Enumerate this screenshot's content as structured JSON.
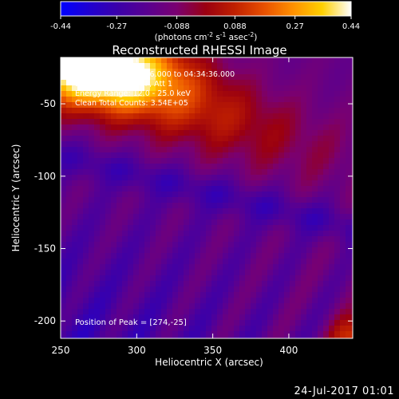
{
  "chart_data": {
    "type": "heatmap",
    "title": "Reconstructed RHESSI Image",
    "xlabel": "Heliocentric X (arcsec)",
    "ylabel": "Heliocentric Y (arcsec)",
    "xlim": [
      250,
      442
    ],
    "ylim": [
      -212,
      -18
    ],
    "x_ticks": [
      "250",
      "300",
      "350",
      "400"
    ],
    "x_tick_values": [
      250,
      300,
      350,
      400
    ],
    "y_ticks": [
      "-50",
      "-100",
      "-150",
      "-200"
    ],
    "y_tick_values": [
      -50,
      -100,
      -150,
      -200
    ],
    "colorbar": {
      "range": [
        -0.44,
        0.44
      ],
      "ticks": [
        "-0.44",
        "-0.27",
        "-0.088",
        "0.088",
        "0.27",
        "0.44"
      ],
      "tick_values": [
        -0.44,
        -0.27,
        -0.088,
        0.088,
        0.27,
        0.44
      ],
      "label_parts": [
        "(photons cm",
        "-2",
        " s",
        "-1",
        " asec",
        "-2",
        ")"
      ]
    },
    "annotations": [
      "2-Feb-2011 04:24:36.000 to 04:34:36.000",
      "Detectors: 3F 6F 9F, Att 1",
      "Energy Range: 12.0 - 25.0 keV",
      "Clean     Total Counts: 3.54E+05"
    ],
    "peak_label": "Position of Peak = [274,-25]",
    "peak": [
      274,
      -25
    ],
    "colormap": [
      "#0000ff",
      "#2000d0",
      "#3c00a8",
      "#5a0090",
      "#7a0070",
      "#9a0010",
      "#c02000",
      "#e85000",
      "#ff9000",
      "#ffd000",
      "#ffffff"
    ]
  },
  "footer": {
    "date": "24-Jul-2017 01:01"
  }
}
